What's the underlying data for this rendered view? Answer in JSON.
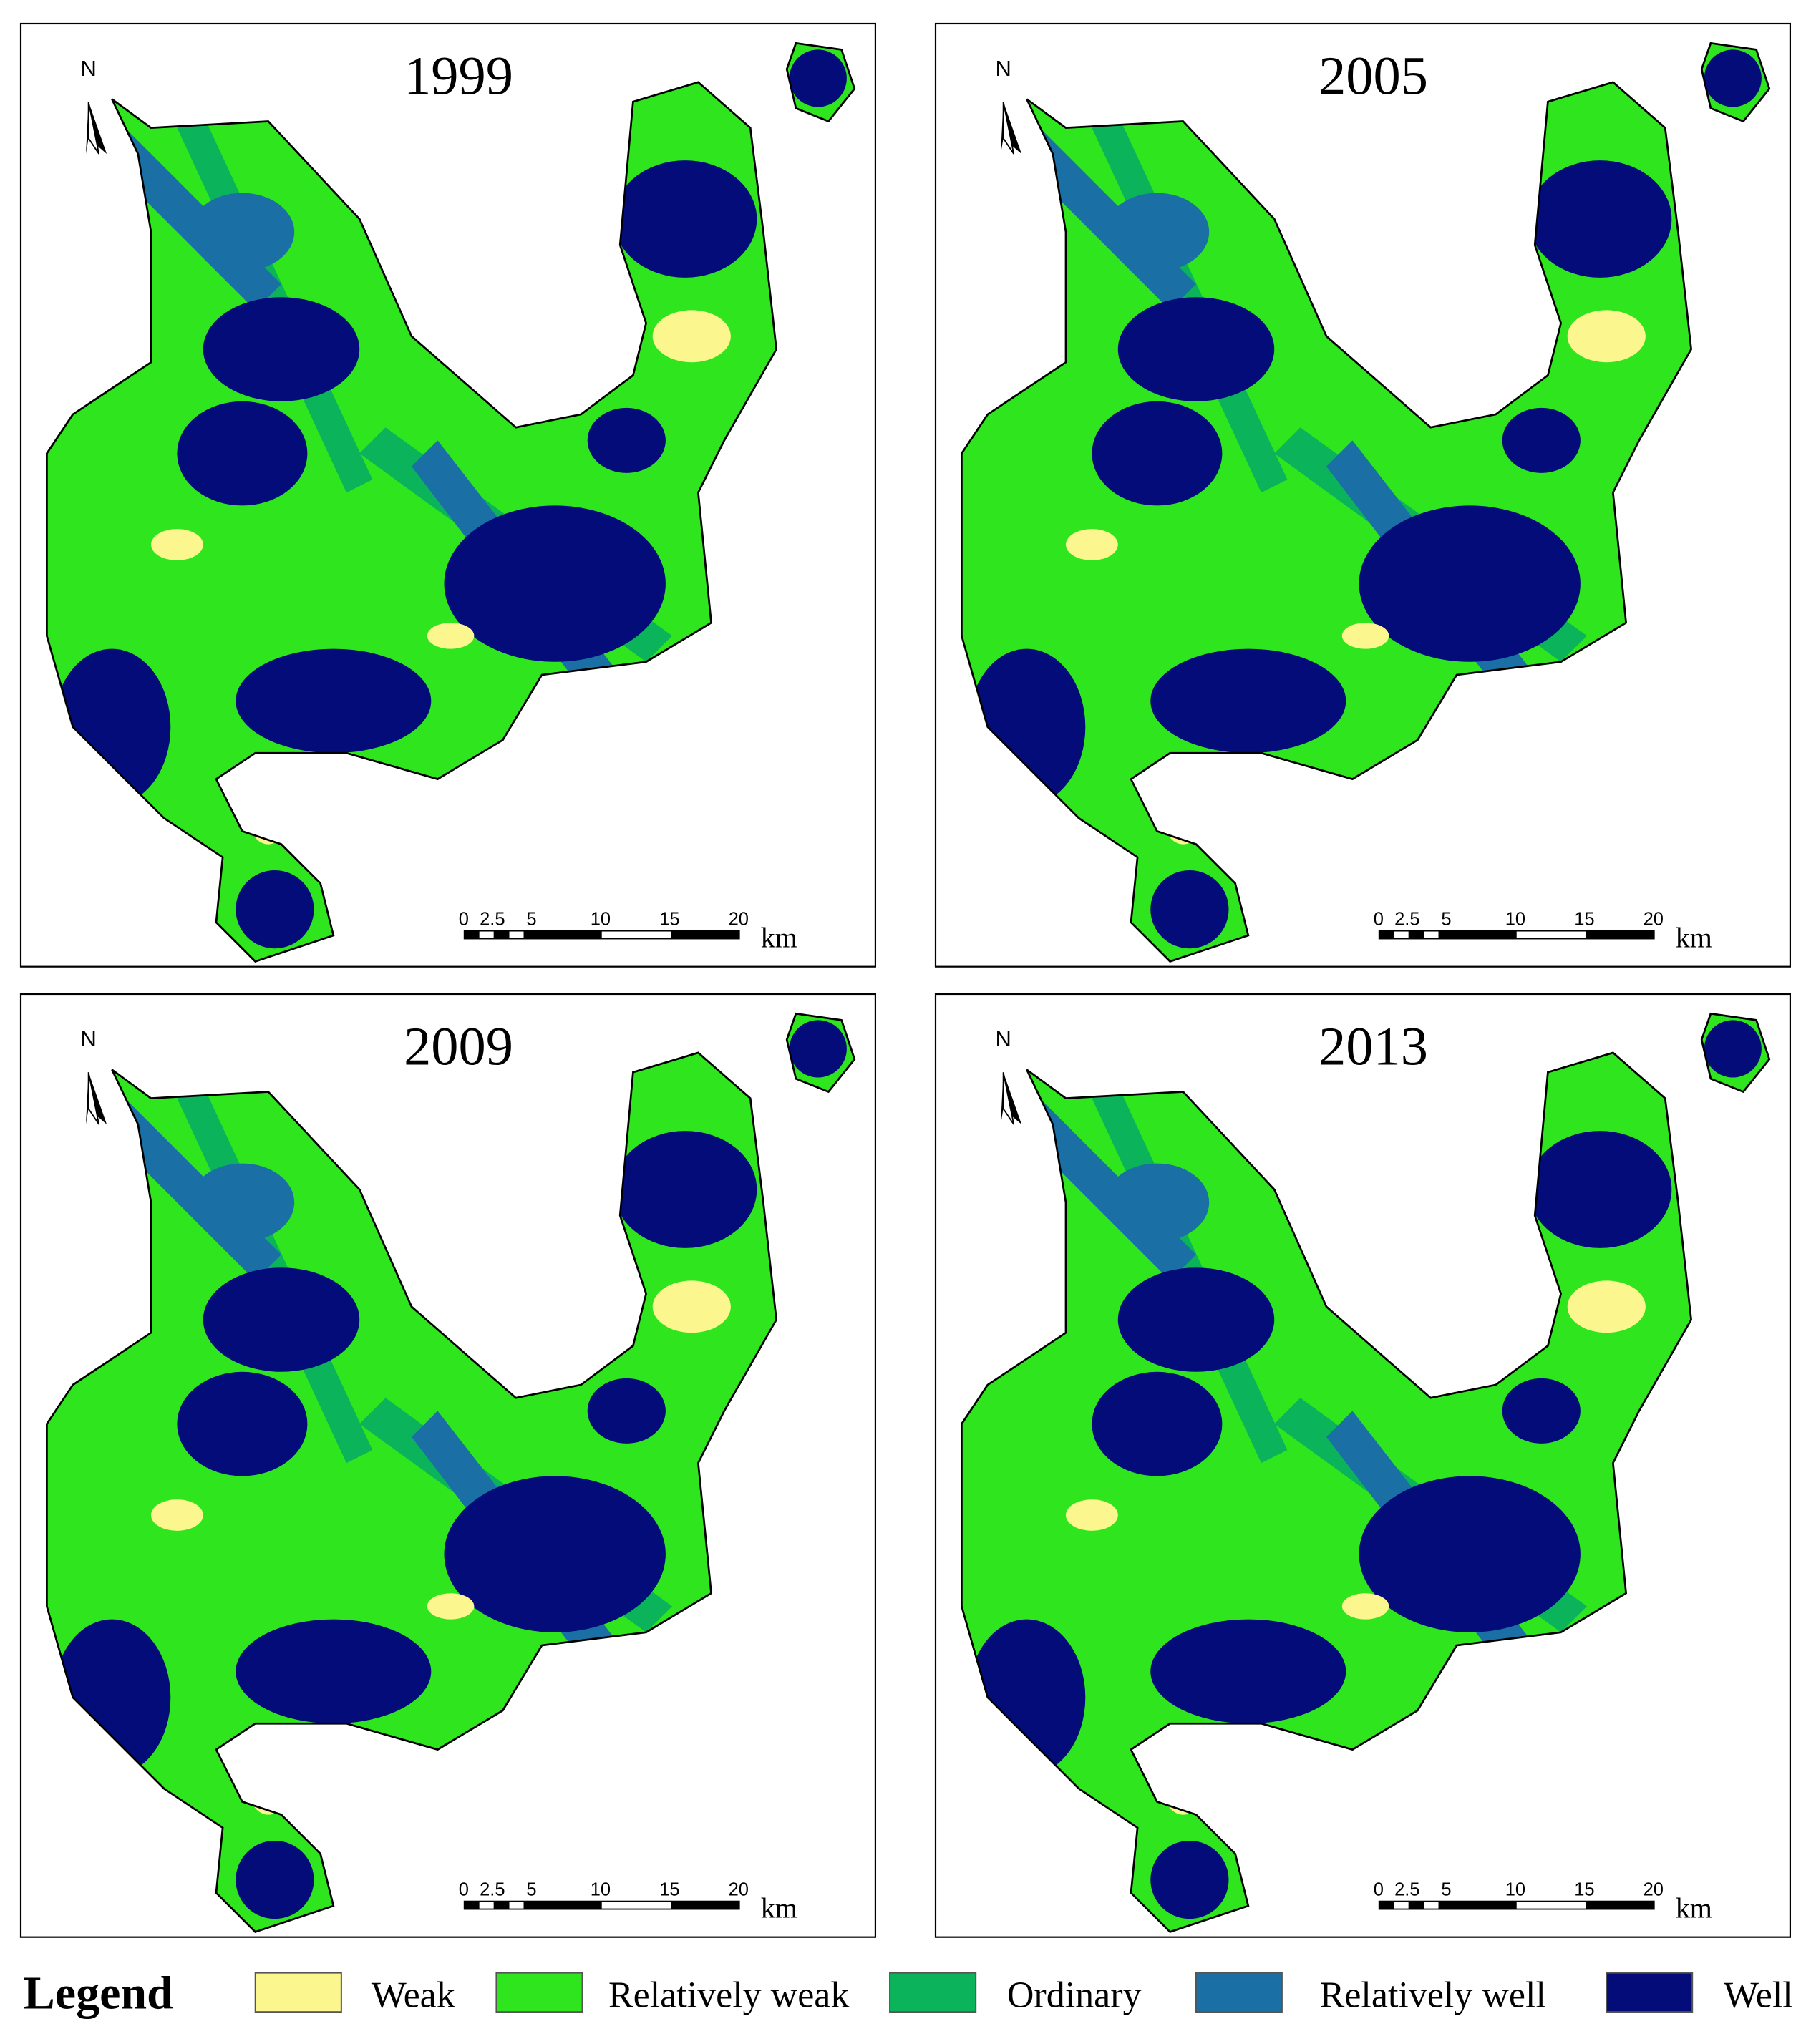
{
  "panels": [
    {
      "year": "1999"
    },
    {
      "year": "2005"
    },
    {
      "year": "2009"
    },
    {
      "year": "2013"
    }
  ],
  "north": "N",
  "scale_bar": {
    "labels": [
      "0",
      "2.5",
      "5",
      "10",
      "15",
      "20"
    ],
    "unit": "km"
  },
  "legend": {
    "title": "Legend",
    "items": [
      {
        "label": "Weak",
        "color": "#fcf68f"
      },
      {
        "label": "Relatively weak",
        "color": "#2fe51e"
      },
      {
        "label": "Ordinary",
        "color": "#0bb45a"
      },
      {
        "label": "Relatively well",
        "color": "#1a70a4"
      },
      {
        "label": "Well",
        "color": "#030c78"
      }
    ]
  }
}
